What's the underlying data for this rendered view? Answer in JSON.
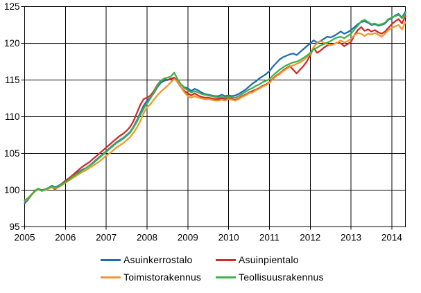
{
  "chart_data": {
    "type": "line",
    "title": "",
    "xlabel": "",
    "ylabel": "",
    "x_unit": "month",
    "x_start": "2005-01",
    "x_end": "2014-05",
    "x_tick_labels": [
      "2005",
      "2006",
      "2007",
      "2008",
      "2009",
      "2010",
      "2011",
      "2012",
      "2013",
      "2014"
    ],
    "y_ticks": [
      95,
      100,
      105,
      110,
      115,
      120,
      125
    ],
    "ylim": [
      95,
      125
    ],
    "grid": "both-black",
    "legend_position": "bottom-two-columns",
    "series": [
      {
        "name": "Asuinkerrostalo",
        "color": "#1F6CB4",
        "values": [
          98.2,
          98.7,
          99.3,
          99.9,
          100.2,
          100.0,
          100.1,
          100.3,
          100.6,
          100.4,
          100.6,
          100.9,
          101.3,
          101.5,
          101.9,
          102.2,
          102.5,
          102.8,
          103.0,
          103.3,
          103.7,
          104.1,
          104.5,
          104.9,
          105.3,
          105.7,
          106.1,
          106.5,
          106.8,
          107.1,
          107.5,
          107.9,
          108.6,
          109.5,
          110.5,
          111.5,
          112.2,
          112.6,
          113.2,
          114.0,
          114.6,
          114.9,
          115.0,
          115.1,
          115.3,
          114.9,
          114.4,
          114.0,
          113.9,
          113.5,
          113.8,
          113.6,
          113.3,
          113.1,
          113.0,
          112.9,
          112.8,
          112.8,
          113.0,
          112.8,
          112.9,
          112.8,
          112.9,
          113.1,
          113.4,
          113.7,
          114.1,
          114.5,
          114.8,
          115.2,
          115.5,
          115.8,
          116.2,
          116.8,
          117.3,
          117.8,
          118.1,
          118.3,
          118.5,
          118.6,
          118.4,
          118.8,
          119.2,
          119.6,
          120.0,
          120.4,
          120.1,
          120.3,
          120.6,
          120.9,
          120.8,
          121.0,
          121.3,
          121.6,
          121.3,
          121.5,
          121.8,
          122.2,
          122.6,
          122.9,
          123.0,
          122.8,
          122.5,
          122.6,
          122.4,
          122.5,
          122.7,
          123.2,
          123.4,
          123.8,
          124.0,
          123.5,
          124.3
        ]
      },
      {
        "name": "Asuinpientalo",
        "color": "#D22B2B",
        "values": [
          98.6,
          98.9,
          99.4,
          99.9,
          100.2,
          99.9,
          100.1,
          100.3,
          100.4,
          100.1,
          100.5,
          100.9,
          101.3,
          101.6,
          102.0,
          102.4,
          102.8,
          103.2,
          103.5,
          103.8,
          104.2,
          104.6,
          105.0,
          105.4,
          105.8,
          106.2,
          106.6,
          107.0,
          107.4,
          107.7,
          108.1,
          108.6,
          109.4,
          110.5,
          111.6,
          112.4,
          112.6,
          112.9,
          113.5,
          114.3,
          114.9,
          115.1,
          115.0,
          115.2,
          115.3,
          114.7,
          114.0,
          113.5,
          113.2,
          112.9,
          113.2,
          112.9,
          112.7,
          112.6,
          112.6,
          112.5,
          112.4,
          112.4,
          112.5,
          112.4,
          112.5,
          112.4,
          112.3,
          112.5,
          112.8,
          113.0,
          113.3,
          113.5,
          113.7,
          113.9,
          114.2,
          114.4,
          114.7,
          115.2,
          115.6,
          115.9,
          116.3,
          116.6,
          116.9,
          116.4,
          115.9,
          116.4,
          116.9,
          117.5,
          118.4,
          119.4,
          118.7,
          119.0,
          119.4,
          119.7,
          119.8,
          119.9,
          120.1,
          120.0,
          119.6,
          119.9,
          120.2,
          121.1,
          121.8,
          122.2,
          121.7,
          121.9,
          121.6,
          121.8,
          121.5,
          121.3,
          121.6,
          122.1,
          122.6,
          123.0,
          123.3,
          122.7,
          123.7
        ]
      },
      {
        "name": "Toimistorakennus",
        "color": "#F2962E",
        "values": [
          98.5,
          98.8,
          99.3,
          99.8,
          100.1,
          99.9,
          100.0,
          100.2,
          100.4,
          100.2,
          100.4,
          100.7,
          101.0,
          101.3,
          101.6,
          101.9,
          102.2,
          102.5,
          102.7,
          103.0,
          103.3,
          103.6,
          103.9,
          104.3,
          104.7,
          105.0,
          105.4,
          105.8,
          106.1,
          106.4,
          106.8,
          107.2,
          107.8,
          108.5,
          109.4,
          110.5,
          111.3,
          111.7,
          112.3,
          112.9,
          113.4,
          113.8,
          114.2,
          114.7,
          115.1,
          114.8,
          114.0,
          113.3,
          112.8,
          112.6,
          112.8,
          112.6,
          112.5,
          112.4,
          112.4,
          112.3,
          112.2,
          112.2,
          112.3,
          112.2,
          112.4,
          112.3,
          112.2,
          112.4,
          112.7,
          112.9,
          113.2,
          113.3,
          113.6,
          113.8,
          114.1,
          114.3,
          114.6,
          115.1,
          115.5,
          115.8,
          116.2,
          116.5,
          116.8,
          117.0,
          117.2,
          117.4,
          117.7,
          118.1,
          118.6,
          119.5,
          120.0,
          120.3,
          120.1,
          119.9,
          119.7,
          119.9,
          120.1,
          120.4,
          120.1,
          120.3,
          120.6,
          121.1,
          121.4,
          121.3,
          121.0,
          121.3,
          121.2,
          121.4,
          121.2,
          120.9,
          121.3,
          121.8,
          122.1,
          122.3,
          122.5,
          121.9,
          122.9
        ]
      },
      {
        "name": "Teollisuusrakennus",
        "color": "#3FB146",
        "values": [
          98.6,
          98.9,
          99.4,
          99.9,
          100.2,
          99.9,
          100.1,
          100.3,
          100.5,
          100.3,
          100.5,
          100.8,
          101.1,
          101.4,
          101.8,
          102.1,
          102.4,
          102.7,
          103.0,
          103.3,
          103.6,
          104.0,
          104.4,
          104.8,
          105.2,
          105.6,
          106.0,
          106.4,
          106.7,
          107.0,
          107.4,
          107.8,
          108.5,
          109.3,
          110.2,
          111.1,
          111.8,
          112.5,
          113.3,
          114.2,
          114.9,
          115.2,
          115.3,
          115.5,
          116.0,
          115.1,
          114.4,
          113.9,
          113.6,
          113.3,
          113.5,
          113.3,
          113.1,
          113.0,
          112.9,
          112.8,
          112.7,
          112.6,
          112.7,
          112.6,
          112.7,
          112.6,
          112.6,
          112.8,
          113.1,
          113.4,
          113.7,
          113.9,
          114.2,
          114.4,
          114.7,
          114.9,
          115.1,
          115.6,
          116.0,
          116.4,
          116.7,
          117.0,
          117.2,
          117.4,
          117.5,
          117.7,
          118.0,
          118.3,
          118.7,
          119.2,
          119.4,
          119.7,
          119.9,
          120.1,
          120.3,
          120.6,
          120.8,
          120.9,
          120.7,
          121.0,
          121.3,
          121.9,
          122.4,
          123.0,
          123.2,
          122.9,
          122.6,
          122.7,
          122.5,
          122.6,
          122.8,
          123.3,
          123.5,
          123.7,
          123.9,
          123.4,
          124.1
        ]
      }
    ],
    "axis_color": "#000000",
    "grid_color": "#000000",
    "background_color": "#ffffff"
  },
  "legend": {
    "items": [
      {
        "label": "Asuinkerrostalo"
      },
      {
        "label": "Asuinpientalo"
      },
      {
        "label": "Toimistorakennus"
      },
      {
        "label": "Teollisuusrakennus"
      }
    ]
  }
}
